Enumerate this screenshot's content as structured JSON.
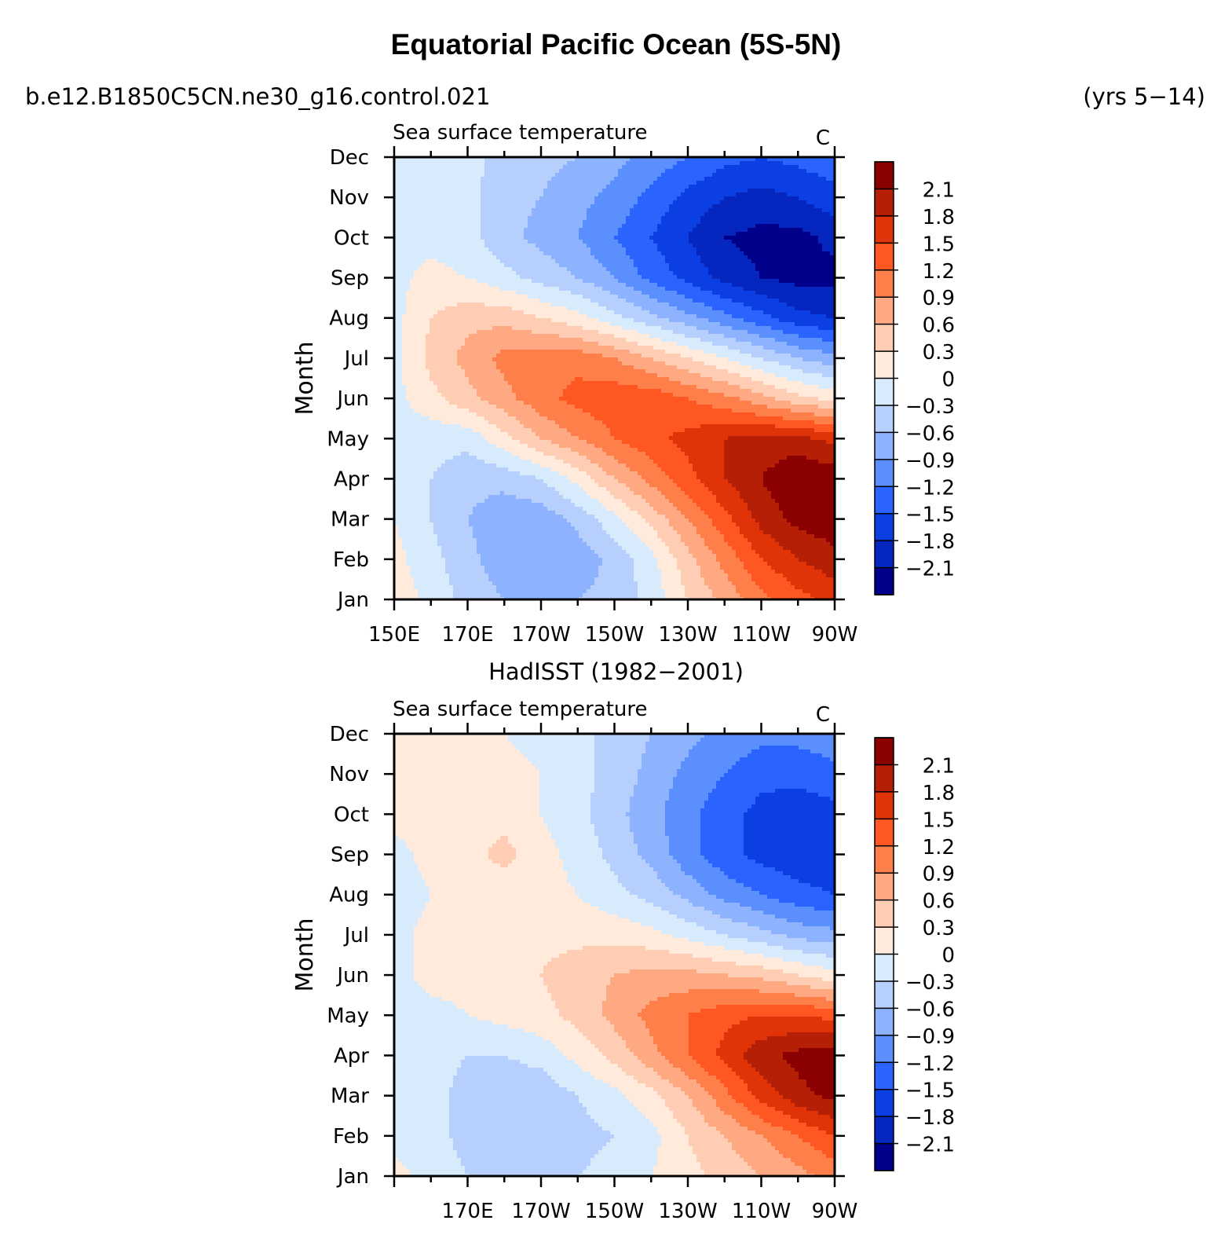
{
  "page": {
    "title": "Equatorial Pacific Ocean (5S-5N)",
    "case_name": "b.e12.B1850C5CN.ne30_g16.control.021",
    "years": "(yrs 5−14)",
    "obs_title": "HadISST (1982−2001)"
  },
  "chart_data": [
    {
      "type": "heatmap",
      "title": "Sea surface temperature",
      "units": "C",
      "ylabel": "Month",
      "x_tick_labels": [
        "150E",
        "170E",
        "170W",
        "150W",
        "130W",
        "110W",
        "90W"
      ],
      "xlim": [
        150,
        270
      ],
      "y_tick_labels": [
        "Jan",
        "Feb",
        "Mar",
        "Apr",
        "May",
        "Jun",
        "Jul",
        "Aug",
        "Sep",
        "Oct",
        "Nov",
        "Dec"
      ],
      "colorbar_labels": [
        "2.1",
        "1.8",
        "1.5",
        "1.2",
        "0.9",
        "0.6",
        "0.3",
        "0",
        "−0.3",
        "−0.6",
        "−0.9",
        "−1.2",
        "−1.5",
        "−1.8",
        "−2.1"
      ],
      "colorbar_colors": [
        "#8b0000",
        "#b51f06",
        "#e03307",
        "#ff5722",
        "#ff7f4a",
        "#ffa982",
        "#ffcdb4",
        "#ffeadc",
        "#d8ebfd",
        "#b6cffc",
        "#8eb3fe",
        "#5c8ffe",
        "#2a63fe",
        "#0b3fe3",
        "#0527bf",
        "#00008a"
      ],
      "x": [
        150,
        160,
        170,
        180,
        190,
        200,
        210,
        220,
        230,
        240,
        250,
        260,
        270
      ],
      "y": [
        1,
        2,
        3,
        4,
        5,
        6,
        7,
        8,
        9,
        10,
        11,
        12
      ],
      "z": [
        [
          0.2,
          -0.1,
          -0.4,
          -0.6,
          -0.7,
          -0.6,
          -0.5,
          -0.2,
          0.3,
          0.7,
          1.1,
          1.4,
          1.6
        ],
        [
          0.1,
          -0.2,
          -0.5,
          -0.8,
          -0.9,
          -0.8,
          -0.5,
          -0.1,
          0.5,
          1.0,
          1.5,
          1.8,
          2.0
        ],
        [
          0.0,
          -0.3,
          -0.6,
          -0.8,
          -0.8,
          -0.5,
          -0.1,
          0.4,
          0.9,
          1.4,
          1.9,
          2.2,
          2.3
        ],
        [
          -0.1,
          -0.3,
          -0.5,
          -0.5,
          -0.3,
          0.1,
          0.6,
          1.0,
          1.4,
          1.8,
          2.1,
          2.4,
          2.3
        ],
        [
          -0.1,
          -0.2,
          -0.2,
          0.2,
          0.6,
          0.9,
          1.2,
          1.4,
          1.6,
          1.8,
          1.9,
          1.9,
          1.7
        ],
        [
          -0.1,
          0.2,
          0.5,
          0.8,
          1.1,
          1.3,
          1.4,
          1.4,
          1.2,
          1.0,
          0.7,
          0.4,
          0.2
        ],
        [
          -0.1,
          0.4,
          0.7,
          1.0,
          1.1,
          1.1,
          0.9,
          0.6,
          0.3,
          0.0,
          -0.3,
          -0.6,
          -0.8
        ],
        [
          -0.1,
          0.3,
          0.5,
          0.5,
          0.3,
          0.1,
          -0.2,
          -0.5,
          -0.8,
          -1.1,
          -1.4,
          -1.7,
          -1.8
        ],
        [
          -0.1,
          0.1,
          0.0,
          -0.2,
          -0.4,
          -0.6,
          -0.9,
          -1.3,
          -1.6,
          -1.9,
          -2.1,
          -2.2,
          -2.2
        ],
        [
          -0.1,
          -0.1,
          -0.2,
          -0.5,
          -0.7,
          -0.9,
          -1.2,
          -1.5,
          -1.8,
          -2.1,
          -2.2,
          -2.2,
          -2.0
        ],
        [
          -0.1,
          -0.1,
          -0.2,
          -0.5,
          -0.6,
          -0.8,
          -1.0,
          -1.3,
          -1.6,
          -1.8,
          -1.9,
          -1.8,
          -1.6
        ],
        [
          -0.1,
          -0.1,
          -0.2,
          -0.4,
          -0.5,
          -0.6,
          -0.8,
          -1.0,
          -1.2,
          -1.4,
          -1.5,
          -1.4,
          -1.3
        ]
      ]
    },
    {
      "type": "heatmap",
      "title": "Sea surface temperature",
      "units": "C",
      "ylabel": "Month",
      "x_tick_labels": [
        "170E",
        "170W",
        "150W",
        "130W",
        "110W",
        "90W"
      ],
      "xlim": [
        150,
        270
      ],
      "y_tick_labels": [
        "Jan",
        "Feb",
        "Mar",
        "Apr",
        "May",
        "Jun",
        "Jul",
        "Aug",
        "Sep",
        "Oct",
        "Nov",
        "Dec"
      ],
      "colorbar_labels": [
        "2.1",
        "1.8",
        "1.5",
        "1.2",
        "0.9",
        "0.6",
        "0.3",
        "0",
        "−0.3",
        "−0.6",
        "−0.9",
        "−1.2",
        "−1.5",
        "−1.8",
        "−2.1"
      ],
      "colorbar_colors": [
        "#8b0000",
        "#b51f06",
        "#e03307",
        "#ff5722",
        "#ff7f4a",
        "#ffa982",
        "#ffcdb4",
        "#ffeadc",
        "#d8ebfd",
        "#b6cffc",
        "#8eb3fe",
        "#5c8ffe",
        "#2a63fe",
        "#0b3fe3",
        "#0527bf",
        "#00008a"
      ],
      "x": [
        150,
        160,
        170,
        180,
        190,
        200,
        210,
        220,
        230,
        240,
        250,
        260,
        270
      ],
      "y": [
        1,
        2,
        3,
        4,
        5,
        6,
        7,
        8,
        9,
        10,
        11,
        12
      ],
      "z": [
        [
          0.1,
          -0.1,
          -0.3,
          -0.4,
          -0.4,
          -0.3,
          -0.2,
          0.0,
          0.2,
          0.4,
          0.6,
          0.8,
          1.0
        ],
        [
          -0.1,
          -0.2,
          -0.4,
          -0.5,
          -0.5,
          -0.4,
          -0.3,
          -0.1,
          0.3,
          0.6,
          0.9,
          1.2,
          1.5
        ],
        [
          -0.1,
          -0.2,
          -0.4,
          -0.5,
          -0.5,
          -0.3,
          -0.1,
          0.2,
          0.6,
          1.1,
          1.6,
          2.0,
          2.2
        ],
        [
          -0.1,
          -0.2,
          -0.3,
          -0.3,
          -0.2,
          0.1,
          0.4,
          0.8,
          1.2,
          1.6,
          2.0,
          2.2,
          2.3
        ],
        [
          -0.1,
          -0.1,
          0.0,
          0.1,
          0.2,
          0.4,
          0.7,
          1.0,
          1.2,
          1.4,
          1.5,
          1.5,
          1.4
        ],
        [
          -0.1,
          0.1,
          0.1,
          0.2,
          0.3,
          0.5,
          0.6,
          0.7,
          0.7,
          0.6,
          0.5,
          0.3,
          0.1
        ],
        [
          -0.1,
          0.1,
          0.1,
          0.1,
          0.2,
          0.2,
          0.2,
          0.1,
          -0.1,
          -0.3,
          -0.5,
          -0.7,
          -0.8
        ],
        [
          -0.2,
          0.0,
          0.1,
          0.1,
          0.1,
          0.0,
          -0.2,
          -0.4,
          -0.7,
          -1.0,
          -1.2,
          -1.4,
          -1.5
        ],
        [
          -0.1,
          0.1,
          0.2,
          0.4,
          0.1,
          -0.1,
          -0.4,
          -0.7,
          -1.1,
          -1.4,
          -1.6,
          -1.7,
          -1.7
        ],
        [
          0.1,
          0.1,
          0.1,
          0.2,
          0.0,
          -0.2,
          -0.5,
          -0.8,
          -1.1,
          -1.4,
          -1.6,
          -1.7,
          -1.6
        ],
        [
          0.1,
          0.1,
          0.1,
          0.1,
          0.0,
          -0.2,
          -0.4,
          -0.7,
          -1.0,
          -1.2,
          -1.4,
          -1.4,
          -1.3
        ],
        [
          0.1,
          0.1,
          0.1,
          0.0,
          -0.1,
          -0.2,
          -0.4,
          -0.6,
          -0.8,
          -1.0,
          -1.1,
          -1.1,
          -1.0
        ]
      ]
    }
  ]
}
